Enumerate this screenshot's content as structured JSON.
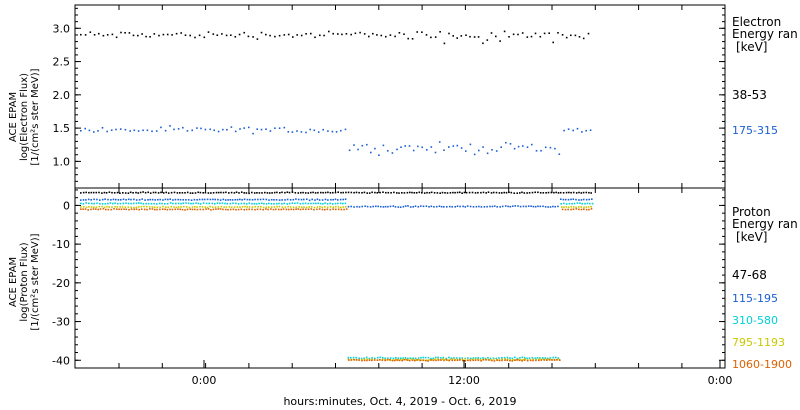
{
  "chart_data": [
    {
      "type": "scatter",
      "panel": "electron",
      "ylabel_lines": [
        "ACE EPAM",
        "log(Electron Flux)",
        "[1/(cm²s ster MeV)]"
      ],
      "ylim": [
        0.6,
        3.35
      ],
      "yticks": [
        1.0,
        1.5,
        2.0,
        2.5,
        3.0
      ],
      "ytick_labels": [
        "1.0",
        "1.5",
        "2.0",
        "2.5",
        "3.0"
      ],
      "legend_title": [
        "Electron",
        "Energy ran"
      ],
      "legend_unit": "[keV]",
      "series": [
        {
          "name": "38-53",
          "color": "#000000",
          "mean": 2.9,
          "spread": 0.08
        },
        {
          "name": "175-315",
          "color": "#1a5fd6",
          "mean": 1.47,
          "spread": 0.07,
          "dip_mean": 1.2,
          "dip_spread": 0.12
        }
      ]
    },
    {
      "type": "scatter",
      "panel": "proton",
      "ylabel_lines": [
        "ACE EPAM",
        "log(Proton Flux)",
        "[1/(cm²s ster MeV)]"
      ],
      "ylim": [
        -42,
        4.5
      ],
      "yticks": [
        -40,
        -30,
        -20,
        -10,
        0
      ],
      "ytick_labels": [
        "-40",
        "-30",
        "-20",
        "-10",
        "0"
      ],
      "legend_title": [
        "Proton",
        "Energy ran"
      ],
      "legend_unit": "[keV]",
      "series": [
        {
          "name": "47-68",
          "color": "#000000",
          "mean": 3.3
        },
        {
          "name": "115-195",
          "color": "#1a5fd6",
          "mean": 1.5,
          "dip_mean": -0.3
        },
        {
          "name": "310-580",
          "color": "#00d0d8",
          "mean": 0.5,
          "dip_mean": -39.4
        },
        {
          "name": "795-1193",
          "color": "#c8c800",
          "mean": -0.4,
          "dip_mean": -39.8
        },
        {
          "name": "1060-1900",
          "color": "#e06000",
          "mean": -1.0,
          "dip_mean": -40.0
        }
      ]
    }
  ],
  "x_axis": {
    "tick_labels": [
      "0:00",
      "12:00",
      "0:00"
    ],
    "xlabel": "hours:minutes, Oct.  4, 2019 - Oct.  6, 2019"
  }
}
